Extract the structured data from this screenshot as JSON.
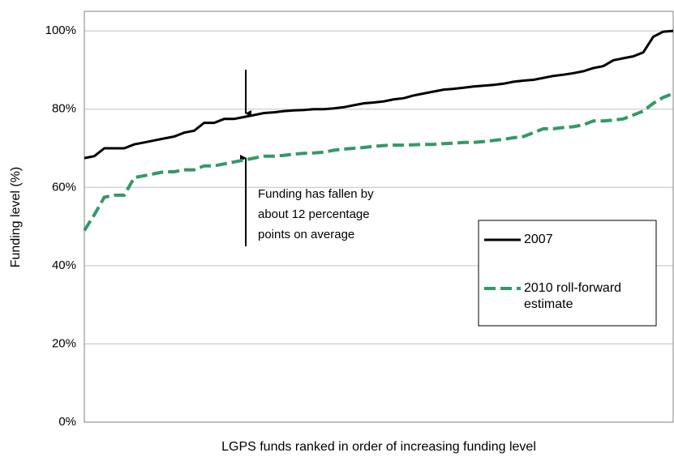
{
  "chart_data": {
    "type": "line",
    "y_label": "Funding level (%)",
    "x_label": "LGPS funds ranked in order of increasing funding level",
    "annotation": [
      "Funding has fallen by",
      "about 12 percentage",
      "points on average"
    ],
    "ylim": [
      0,
      105
    ],
    "yticks": [
      {
        "value": 0,
        "label": "0%"
      },
      {
        "value": 20,
        "label": "20%"
      },
      {
        "value": 40,
        "label": "40%"
      },
      {
        "value": 60,
        "label": "60%"
      },
      {
        "value": 80,
        "label": "80%"
      },
      {
        "value": 100,
        "label": "100%"
      }
    ],
    "grid": true,
    "legend": "right",
    "series": [
      {
        "name": "2007",
        "color": "#000000",
        "dash": false,
        "values": [
          67.5,
          68,
          70,
          70,
          70,
          71,
          71.5,
          72,
          72.5,
          73,
          74,
          74.5,
          76.5,
          76.5,
          77.5,
          77.5,
          78,
          78.5,
          79,
          79.2,
          79.5,
          79.7,
          79.8,
          80,
          80,
          80.2,
          80.5,
          81,
          81.5,
          81.7,
          82,
          82.5,
          82.8,
          83.5,
          84,
          84.5,
          85,
          85.2,
          85.5,
          85.8,
          86,
          86.2,
          86.5,
          87,
          87.3,
          87.5,
          88,
          88.5,
          88.8,
          89.2,
          89.7,
          90.5,
          91,
          92.5,
          93,
          93.5,
          94.5,
          98.5,
          99.8,
          100
        ]
      },
      {
        "name": "2010 roll-forward estimate",
        "color": "#339966",
        "dash": true,
        "values": [
          49,
          53,
          57.5,
          58,
          58,
          62.5,
          63,
          63.5,
          64,
          64,
          64.5,
          64.5,
          65.5,
          65.5,
          66,
          66.5,
          67,
          67.5,
          68,
          68,
          68.2,
          68.5,
          68.7,
          68.8,
          69,
          69.5,
          69.8,
          70,
          70.2,
          70.5,
          70.7,
          70.8,
          70.8,
          70.9,
          71,
          71,
          71.2,
          71.3,
          71.5,
          71.5,
          71.7,
          72,
          72.3,
          72.7,
          73,
          74,
          75,
          75,
          75.3,
          75.5,
          76,
          77,
          77,
          77.2,
          77.5,
          78.5,
          79.5,
          81.5,
          83,
          84
        ]
      }
    ]
  }
}
